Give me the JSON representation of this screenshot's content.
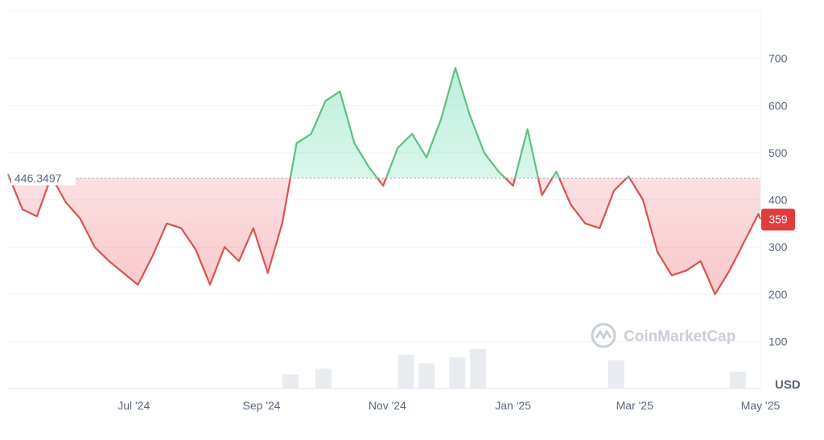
{
  "chart_data": {
    "type": "area",
    "title": "",
    "xlabel": "",
    "ylabel": "",
    "y_unit": "USD",
    "ylim": [
      0,
      800
    ],
    "y_ticks": [
      100,
      200,
      300,
      400,
      500,
      600,
      700
    ],
    "x_tick_labels": [
      "Jul '24",
      "Sep '24",
      "Nov '24",
      "Jan '25",
      "Mar '25",
      "May '25"
    ],
    "x_tick_dates": [
      "2024-07-01",
      "2024-09-01",
      "2024-11-01",
      "2025-01-01",
      "2025-03-01",
      "2025-05-01"
    ],
    "x_range": [
      "2024-05-01",
      "2025-05-01"
    ],
    "reference_line": {
      "value": 446.3497,
      "label": "446.3497"
    },
    "current_price": {
      "value": 359,
      "label": "359"
    },
    "colors": {
      "above": "#16c784",
      "below": "#ea3943",
      "above_line": "#5fbf7f",
      "below_line": "#d9534f"
    },
    "grid": true,
    "series": [
      {
        "x": [
          "2024-05-01",
          "2024-05-08",
          "2024-05-15",
          "2024-05-22",
          "2024-05-29",
          "2024-06-05",
          "2024-06-12",
          "2024-06-19",
          "2024-06-26",
          "2024-07-03",
          "2024-07-10",
          "2024-07-17",
          "2024-07-24",
          "2024-07-31",
          "2024-08-07",
          "2024-08-14",
          "2024-08-21",
          "2024-08-28",
          "2024-09-04",
          "2024-09-11",
          "2024-09-18",
          "2024-09-25",
          "2024-10-02",
          "2024-10-09",
          "2024-10-16",
          "2024-10-23",
          "2024-10-30",
          "2024-11-06",
          "2024-11-13",
          "2024-11-20",
          "2024-11-27",
          "2024-12-04",
          "2024-12-11",
          "2024-12-18",
          "2024-12-25",
          "2025-01-01",
          "2025-01-08",
          "2025-01-15",
          "2025-01-22",
          "2025-01-29",
          "2025-02-05",
          "2025-02-12",
          "2025-02-19",
          "2025-02-26",
          "2025-03-05",
          "2025-03-12",
          "2025-03-19",
          "2025-03-26",
          "2025-04-02",
          "2025-04-09",
          "2025-04-16",
          "2025-04-23",
          "2025-04-30",
          "2025-05-01"
        ],
        "y": [
          455,
          380,
          365,
          450,
          395,
          360,
          300,
          270,
          245,
          220,
          280,
          350,
          340,
          295,
          220,
          300,
          270,
          340,
          245,
          350,
          520,
          540,
          610,
          630,
          520,
          470,
          430,
          510,
          540,
          490,
          570,
          680,
          580,
          500,
          460,
          430,
          550,
          410,
          460,
          390,
          350,
          340,
          420,
          450,
          400,
          290,
          240,
          250,
          270,
          200,
          250,
          310,
          370,
          359
        ]
      }
    ],
    "volume": [
      {
        "x": "2024-09-15",
        "v": 0.25
      },
      {
        "x": "2024-10-01",
        "v": 0.35
      },
      {
        "x": "2024-11-10",
        "v": 0.6
      },
      {
        "x": "2024-11-20",
        "v": 0.45
      },
      {
        "x": "2024-12-05",
        "v": 0.55
      },
      {
        "x": "2024-12-15",
        "v": 0.7
      },
      {
        "x": "2025-02-20",
        "v": 0.5
      },
      {
        "x": "2025-04-20",
        "v": 0.3
      }
    ]
  },
  "watermark": {
    "text": "CoinMarketCap",
    "icon": "coinmarketcap-logo-icon"
  }
}
